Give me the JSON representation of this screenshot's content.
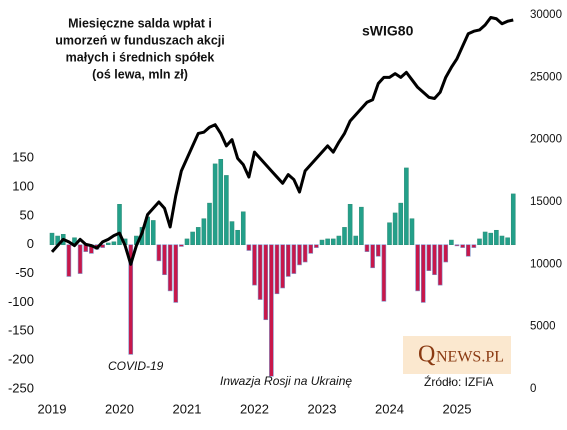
{
  "chart_data": {
    "type": "bar_line",
    "title": [
      "Miesięczne salda wpłat i",
      "umorzeń w funduszach akcji",
      "małych i średnich spółek",
      "(oś lewa, mln zł)"
    ],
    "categories": [
      "2019",
      null,
      null,
      null,
      null,
      null,
      null,
      null,
      null,
      null,
      null,
      null,
      "2020",
      null,
      null,
      null,
      null,
      null,
      null,
      null,
      null,
      null,
      null,
      null,
      "2021",
      null,
      null,
      null,
      null,
      null,
      null,
      null,
      null,
      null,
      null,
      null,
      "2022",
      null,
      null,
      null,
      null,
      null,
      null,
      null,
      null,
      null,
      null,
      null,
      "2023",
      null,
      null,
      null,
      null,
      null,
      null,
      null,
      null,
      null,
      null,
      null,
      "2024",
      null,
      null,
      null,
      null,
      null,
      null,
      null,
      null,
      null,
      null,
      null,
      "2025",
      null,
      null,
      null,
      null,
      null,
      null,
      null,
      null,
      null,
      null
    ],
    "series": [
      {
        "color_positive": "#23a08a",
        "color_negative": "#c8174a",
        "values": [
          20,
          15,
          18,
          -55,
          12,
          -50,
          -12,
          -15,
          -8,
          -5,
          3,
          5,
          70,
          10,
          -190,
          15,
          30,
          48,
          42,
          -28,
          -52,
          -80,
          -100,
          -3,
          10,
          22,
          30,
          45,
          72,
          140,
          148,
          120,
          40,
          25,
          57,
          -10,
          -70,
          -95,
          -130,
          -228,
          -85,
          -75,
          -55,
          -50,
          -35,
          -30,
          -15,
          -5,
          8,
          10,
          10,
          15,
          30,
          70,
          15,
          65,
          -12,
          -40,
          -20,
          -98,
          38,
          55,
          72,
          133,
          45,
          -80,
          -100,
          -45,
          -52,
          -70,
          -30,
          8,
          -2,
          -5,
          -20,
          -5,
          10,
          22,
          20,
          25,
          15,
          12,
          88
        ]
      },
      {
        "name": "sWIG80",
        "axis": "y2",
        "color": "#000000",
        "values": [
          11000,
          11500,
          12000,
          11800,
          11500,
          12000,
          11600,
          11500,
          11300,
          11800,
          12000,
          12300,
          12500,
          11500,
          10000,
          11500,
          12500,
          14000,
          14500,
          15000,
          14500,
          13000,
          15500,
          17500,
          18500,
          19500,
          20500,
          20600,
          21000,
          21200,
          20500,
          19500,
          20000,
          18500,
          18000,
          17000,
          19000,
          18500,
          18000,
          17500,
          17000,
          16500,
          17200,
          16800,
          15800,
          17500,
          18000,
          18500,
          19000,
          19500,
          19000,
          19800,
          20500,
          21500,
          22000,
          22500,
          23000,
          23200,
          24500,
          25000,
          25000,
          25300,
          25000,
          25400,
          24800,
          24200,
          23800,
          23400,
          23300,
          23800,
          25000,
          25800,
          26500,
          27500,
          28500,
          28700,
          28800,
          29200,
          29800,
          29700,
          29300,
          29500,
          29600
        ]
      }
    ],
    "ylim": [
      -250,
      398
    ],
    "yticks": [
      -250,
      -200,
      -150,
      -100,
      -50,
      0,
      50,
      100,
      150
    ],
    "y2lim": [
      0,
      30000
    ],
    "y2ticks": [
      0,
      5000,
      10000,
      15000,
      20000,
      25000,
      30000
    ],
    "annotations": [
      "COVID-19",
      "Inwazja Rosji na Ukrainę",
      "Źródło: IZFiA"
    ],
    "logo": {
      "initial": "Q",
      "rest": "NEWS.PL"
    }
  }
}
